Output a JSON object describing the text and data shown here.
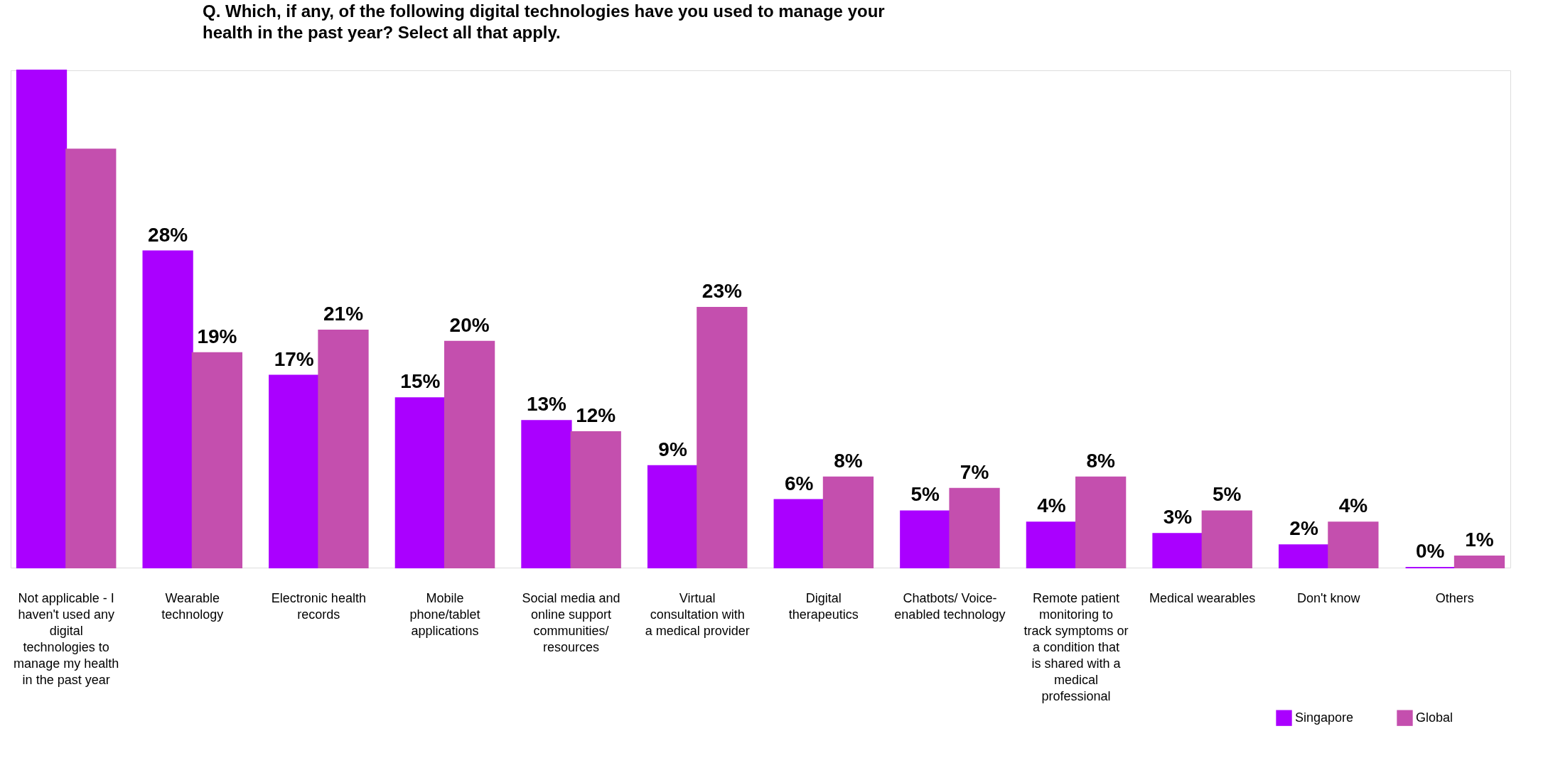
{
  "chart_data": {
    "type": "bar",
    "title": "Q. Which, if any, of the following digital technologies have you used to manage your health in the past year? Select all that apply.",
    "categories": [
      "Not applicable - I haven't used any digital technologies to manage my health in the past year",
      "Wearable technology",
      "Electronic health records",
      "Mobile phone/tablet applications",
      "Social media and online support communities/ resources",
      "Virtual consultation with a medical provider",
      "Digital therapeutics",
      "Chatbots/ Voice-enabled technology",
      "Remote patient monitoring to track symptoms or a condition that is shared with a medical professional",
      "Medical wearables",
      "Don't know",
      "Others"
    ],
    "series": [
      {
        "name": "Singapore",
        "color": "#aa00ff",
        "values": [
          44,
          28,
          17,
          15,
          13,
          9,
          6,
          5,
          4,
          3,
          2,
          0
        ],
        "value_labels": [
          null,
          "28%",
          "17%",
          "15%",
          "13%",
          "9%",
          "6%",
          "5%",
          "4%",
          "3%",
          "2%",
          "0%"
        ]
      },
      {
        "name": "Global",
        "color": "#c44fae",
        "values": [
          37,
          19,
          21,
          20,
          12,
          23,
          8,
          7,
          8,
          5,
          4,
          1
        ],
        "value_labels": [
          null,
          "19%",
          "21%",
          "20%",
          "12%",
          "23%",
          "8%",
          "7%",
          "8%",
          "5%",
          "4%",
          "1%"
        ]
      }
    ],
    "ylim": [
      0,
      44
    ],
    "legend": "bottom right"
  }
}
